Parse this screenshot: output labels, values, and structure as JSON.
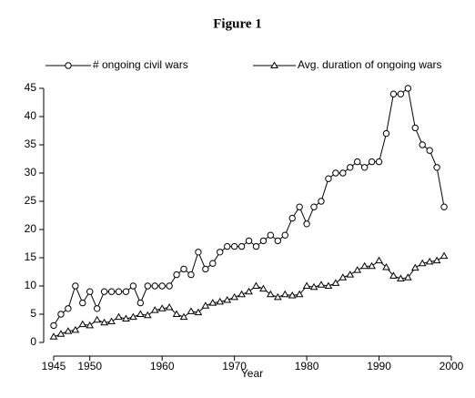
{
  "chart_data": {
    "type": "line",
    "title": "Figure 1",
    "xlabel": "Year",
    "x": [
      1945,
      1946,
      1947,
      1948,
      1949,
      1950,
      1951,
      1952,
      1953,
      1954,
      1955,
      1956,
      1957,
      1958,
      1959,
      1960,
      1961,
      1962,
      1963,
      1964,
      1965,
      1966,
      1967,
      1968,
      1969,
      1970,
      1971,
      1972,
      1973,
      1974,
      1975,
      1976,
      1977,
      1978,
      1979,
      1980,
      1981,
      1982,
      1983,
      1984,
      1985,
      1986,
      1987,
      1988,
      1989,
      1990,
      1991,
      1992,
      1993,
      1994,
      1995,
      1996,
      1997,
      1998,
      1999
    ],
    "series": [
      {
        "name": "# ongoing civil wars",
        "color": "#000000",
        "marker": "circle",
        "values": [
          3,
          5,
          6,
          10,
          7,
          9,
          6,
          9,
          9,
          9,
          9,
          10,
          7,
          10,
          10,
          10,
          10,
          12,
          13,
          12,
          16,
          13,
          14,
          16,
          17,
          17,
          17,
          18,
          17,
          18,
          19,
          18,
          19,
          22,
          24,
          21,
          24,
          25,
          29,
          30,
          30,
          31,
          32,
          31,
          32,
          32,
          37,
          44,
          44,
          45,
          38,
          35,
          34,
          31,
          24
        ]
      },
      {
        "name": "Avg. duration of ongoing wars",
        "color": "#000000",
        "marker": "triangle",
        "values": [
          1,
          1.5,
          2,
          2.2,
          3.2,
          3,
          4,
          3.5,
          3.7,
          4.5,
          4.2,
          4.5,
          5,
          4.8,
          5.7,
          6,
          6.2,
          5,
          4.5,
          5.5,
          5.3,
          6.5,
          7,
          7.2,
          7.5,
          8,
          8.5,
          9,
          10,
          9.5,
          8.5,
          8,
          8.5,
          8.3,
          8.5,
          10,
          9.8,
          10.2,
          10,
          10.5,
          11.5,
          12,
          12.8,
          13.5,
          13.5,
          14.5,
          13.3,
          11.8,
          11.3,
          11.5,
          13.2,
          14,
          14.3,
          14.5,
          15.3
        ]
      }
    ],
    "xlim": [
      1945,
      2000
    ],
    "xticks": [
      1945,
      1950,
      1960,
      1970,
      1980,
      1990,
      2000
    ],
    "ylim": [
      0,
      45
    ],
    "yticks": [
      0,
      5,
      10,
      15,
      20,
      25,
      30,
      35,
      40,
      45
    ],
    "grid": false,
    "legend": "top"
  }
}
